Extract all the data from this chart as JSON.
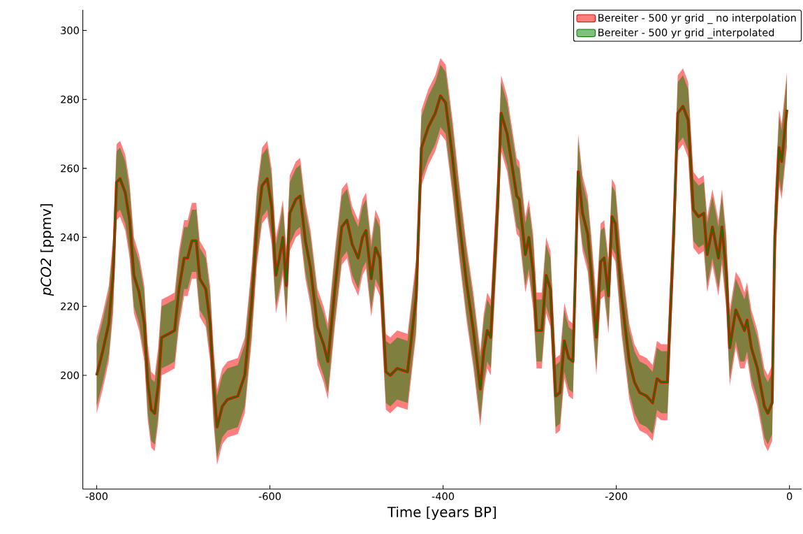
{
  "chart_data": {
    "type": "line",
    "xlabel": "Time [years BP]",
    "ylabel": "*pCO2* [ppmv]",
    "xlim": [
      -816,
      14
    ],
    "ylim": [
      167,
      306
    ],
    "xticks": [
      -800,
      -600,
      -400,
      -200,
      0
    ],
    "yticks": [
      200,
      220,
      240,
      260,
      280,
      300
    ],
    "grid": false,
    "legend": "top right",
    "x": [
      -800,
      -793,
      -786,
      -781,
      -777,
      -773,
      -767,
      -762,
      -757,
      -751,
      -745,
      -741,
      -737,
      -733,
      -729,
      -725,
      -717,
      -710,
      -705,
      -699,
      -695,
      -690,
      -685,
      -681,
      -674,
      -669,
      -665,
      -661,
      -655,
      -649,
      -637,
      -629,
      -621,
      -615,
      -609,
      -603,
      -598,
      -593,
      -589,
      -585,
      -581,
      -577,
      -570,
      -565,
      -559,
      -553,
      -545,
      -538,
      -533,
      -525,
      -517,
      -511,
      -505,
      -498,
      -493,
      -489,
      -483,
      -478,
      -473,
      -466,
      -461,
      -453,
      -441,
      -431,
      -425,
      -417,
      -409,
      -403,
      -397,
      -389,
      -381,
      -373,
      -365,
      -357,
      -353,
      -349,
      -345,
      -337,
      -333,
      -326,
      -315,
      -312,
      -305,
      -301,
      -296,
      -292,
      -286,
      -281,
      -276,
      -270,
      -265,
      -260,
      -255,
      -250,
      -244,
      -239,
      -233,
      -229,
      -223,
      -218,
      -214,
      -209,
      -205,
      -201,
      -194,
      -185,
      -179,
      -173,
      -165,
      -158,
      -153,
      -148,
      -141,
      -134,
      -129,
      -123,
      -117,
      -111,
      -105,
      -99,
      -95,
      -89,
      -82,
      -78,
      -73,
      -69,
      -62,
      -57,
      -52,
      -49,
      -44,
      -37,
      -29,
      -25,
      -20,
      -17,
      -12,
      -9,
      -3
    ],
    "series": [
      {
        "name": "Bereiter - 500 yr grid _ no interpolation",
        "color": "#ff0000",
        "values": [
          200,
          207,
          215,
          229,
          256,
          257,
          253,
          245,
          229,
          224,
          215,
          198,
          190,
          189,
          197,
          211,
          212,
          213,
          225,
          234,
          234,
          239,
          239,
          228,
          225,
          215,
          197,
          185,
          191,
          193,
          194,
          200,
          221,
          243,
          255,
          257,
          249,
          229,
          234,
          240,
          226,
          247,
          251,
          252,
          239,
          231,
          214,
          209,
          204,
          225,
          243,
          245,
          238,
          234,
          240,
          242,
          228,
          237,
          234,
          201,
          200,
          202,
          201,
          223,
          266,
          272,
          276,
          281,
          279,
          263,
          244,
          227,
          213,
          196,
          207,
          213,
          211,
          249,
          276,
          270,
          252,
          251,
          235,
          240,
          230,
          213,
          213,
          229,
          225,
          194,
          195,
          210,
          205,
          204,
          259,
          247,
          241,
          230,
          211,
          233,
          234,
          223,
          246,
          244,
          223,
          204,
          198,
          195,
          194,
          192,
          199,
          198,
          198,
          239,
          276,
          278,
          274,
          248,
          246,
          247,
          235,
          243,
          234,
          243,
          230,
          208,
          219,
          216,
          213,
          216,
          208,
          202,
          191,
          189,
          192,
          240,
          266,
          262,
          277
        ],
        "lower": [
          189,
          196,
          204,
          218,
          245,
          246,
          242,
          234,
          218,
          213,
          204,
          187,
          179,
          178,
          186,
          200,
          201,
          202,
          214,
          223,
          223,
          228,
          228,
          217,
          214,
          204,
          186,
          174,
          180,
          182,
          183,
          189,
          210,
          232,
          244,
          246,
          238,
          218,
          223,
          229,
          215,
          236,
          240,
          241,
          228,
          220,
          203,
          198,
          193,
          214,
          232,
          234,
          227,
          223,
          229,
          231,
          217,
          226,
          223,
          190,
          189,
          191,
          190,
          212,
          255,
          261,
          265,
          270,
          268,
          252,
          233,
          216,
          202,
          185,
          196,
          202,
          200,
          238,
          265,
          259,
          241,
          240,
          224,
          229,
          219,
          202,
          202,
          218,
          214,
          183,
          184,
          199,
          194,
          193,
          248,
          236,
          230,
          219,
          200,
          222,
          223,
          212,
          235,
          233,
          212,
          193,
          187,
          184,
          183,
          181,
          188,
          187,
          187,
          228,
          265,
          267,
          263,
          237,
          235,
          236,
          224,
          232,
          223,
          232,
          219,
          197,
          208,
          202,
          202,
          205,
          197,
          191,
          180,
          178,
          181,
          229,
          255,
          251,
          266
        ],
        "upper": [
          211,
          218,
          226,
          240,
          267,
          268,
          264,
          256,
          240,
          235,
          226,
          209,
          201,
          200,
          208,
          222,
          223,
          224,
          236,
          245,
          245,
          250,
          250,
          239,
          236,
          226,
          208,
          196,
          202,
          204,
          205,
          211,
          232,
          254,
          266,
          268,
          260,
          240,
          245,
          251,
          237,
          258,
          262,
          263,
          250,
          242,
          225,
          220,
          215,
          236,
          254,
          256,
          249,
          245,
          251,
          253,
          239,
          248,
          245,
          212,
          211,
          213,
          212,
          234,
          277,
          283,
          287,
          292,
          290,
          274,
          255,
          238,
          224,
          207,
          218,
          224,
          222,
          260,
          287,
          281,
          263,
          262,
          246,
          251,
          241,
          224,
          224,
          240,
          236,
          205,
          206,
          221,
          216,
          215,
          270,
          258,
          252,
          241,
          222,
          244,
          245,
          234,
          257,
          255,
          234,
          215,
          209,
          206,
          205,
          203,
          210,
          209,
          209,
          250,
          287,
          289,
          285,
          259,
          257,
          258,
          246,
          254,
          245,
          254,
          241,
          219,
          230,
          228,
          224,
          227,
          219,
          213,
          202,
          200,
          203,
          251,
          277,
          273,
          288
        ]
      },
      {
        "name": "Bereiter - 500 yr grid _interpolated",
        "color": "#008000",
        "values": [
          200,
          207,
          215,
          229,
          256,
          257,
          253,
          245,
          229,
          224,
          215,
          198,
          190,
          189,
          197,
          211,
          212,
          213,
          225,
          234,
          234,
          239,
          239,
          228,
          225,
          215,
          197,
          185,
          191,
          193,
          194,
          200,
          221,
          243,
          255,
          257,
          249,
          229,
          234,
          240,
          226,
          247,
          251,
          252,
          239,
          231,
          214,
          209,
          204,
          225,
          243,
          245,
          238,
          234,
          240,
          242,
          228,
          237,
          234,
          201,
          200,
          202,
          201,
          223,
          266,
          272,
          276,
          281,
          279,
          263,
          244,
          227,
          213,
          196,
          207,
          213,
          211,
          249,
          276,
          270,
          252,
          251,
          235,
          240,
          230,
          213,
          213,
          229,
          225,
          194,
          195,
          210,
          205,
          204,
          259,
          247,
          241,
          230,
          211,
          233,
          234,
          223,
          246,
          244,
          223,
          204,
          198,
          195,
          194,
          192,
          199,
          198,
          198,
          239,
          276,
          278,
          274,
          248,
          246,
          247,
          235,
          243,
          234,
          243,
          230,
          208,
          219,
          216,
          213,
          216,
          208,
          202,
          191,
          189,
          192,
          240,
          266,
          262,
          277
        ],
        "lower": [
          191,
          198,
          206,
          220,
          247,
          248,
          244,
          236,
          220,
          215,
          206,
          189,
          181,
          180,
          188,
          202,
          203,
          204,
          216,
          225,
          225,
          230,
          230,
          219,
          216,
          206,
          188,
          176,
          182,
          184,
          185,
          191,
          212,
          234,
          246,
          248,
          240,
          220,
          225,
          231,
          217,
          238,
          242,
          243,
          230,
          222,
          205,
          200,
          195,
          216,
          234,
          236,
          229,
          225,
          231,
          233,
          219,
          228,
          225,
          192,
          191,
          193,
          192,
          214,
          257,
          263,
          267,
          272,
          270,
          254,
          235,
          218,
          204,
          187,
          198,
          204,
          202,
          240,
          267,
          261,
          243,
          242,
          226,
          231,
          221,
          204,
          204,
          220,
          216,
          185,
          186,
          201,
          196,
          195,
          250,
          238,
          232,
          221,
          202,
          224,
          225,
          214,
          237,
          235,
          214,
          195,
          189,
          186,
          185,
          183,
          190,
          189,
          189,
          230,
          267,
          269,
          265,
          239,
          237,
          238,
          226,
          234,
          225,
          234,
          221,
          199,
          210,
          204,
          204,
          207,
          199,
          193,
          182,
          180,
          183,
          231,
          257,
          253,
          268
        ],
        "upper": [
          209,
          216,
          224,
          238,
          265,
          266,
          262,
          254,
          238,
          233,
          224,
          207,
          199,
          198,
          206,
          220,
          221,
          222,
          234,
          243,
          243,
          248,
          248,
          237,
          234,
          224,
          206,
          194,
          200,
          202,
          203,
          209,
          230,
          252,
          264,
          266,
          258,
          238,
          243,
          249,
          235,
          256,
          260,
          261,
          248,
          240,
          223,
          218,
          213,
          234,
          252,
          254,
          247,
          243,
          249,
          251,
          237,
          246,
          243,
          210,
          209,
          211,
          210,
          232,
          275,
          281,
          285,
          290,
          288,
          272,
          253,
          236,
          222,
          205,
          216,
          222,
          220,
          258,
          285,
          279,
          261,
          260,
          244,
          249,
          239,
          222,
          222,
          238,
          234,
          203,
          204,
          219,
          214,
          213,
          268,
          256,
          250,
          239,
          220,
          242,
          243,
          232,
          255,
          253,
          232,
          213,
          207,
          204,
          203,
          201,
          208,
          207,
          207,
          248,
          285,
          287,
          283,
          257,
          255,
          256,
          244,
          252,
          243,
          252,
          239,
          217,
          228,
          225,
          222,
          225,
          217,
          211,
          200,
          198,
          201,
          249,
          275,
          271,
          286
        ]
      }
    ]
  }
}
